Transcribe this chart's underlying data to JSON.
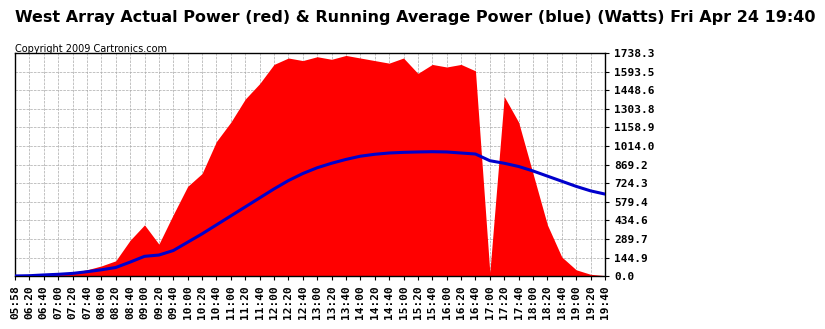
{
  "title": "West Array Actual Power (red) & Running Average Power (blue) (Watts) Fri Apr 24 19:40",
  "copyright": "Copyright 2009 Cartronics.com",
  "bg_color": "#ffffff",
  "plot_bg_color": "#ffffff",
  "grid_color": "#aaaaaa",
  "actual_color": "#ff0000",
  "avg_color": "#0000cc",
  "ymin": 0.0,
  "ymax": 1738.3,
  "yticks": [
    0.0,
    144.9,
    289.7,
    434.6,
    579.4,
    724.3,
    869.2,
    1014.0,
    1158.9,
    1303.8,
    1448.6,
    1593.5,
    1738.3
  ],
  "x_times": [
    "05:58",
    "06:20",
    "06:40",
    "07:00",
    "07:20",
    "07:40",
    "08:00",
    "08:20",
    "08:40",
    "09:00",
    "09:20",
    "09:40",
    "10:00",
    "10:20",
    "10:40",
    "11:00",
    "11:20",
    "11:40",
    "12:00",
    "12:20",
    "12:40",
    "13:00",
    "13:20",
    "13:40",
    "14:00",
    "14:20",
    "14:40",
    "15:00",
    "15:20",
    "15:40",
    "16:00",
    "16:20",
    "16:40",
    "17:00",
    "17:20",
    "17:40",
    "18:00",
    "18:20",
    "18:40",
    "19:00",
    "19:20",
    "19:40"
  ],
  "actual_values": [
    2,
    5,
    15,
    20,
    30,
    50,
    80,
    120,
    280,
    400,
    250,
    480,
    700,
    800,
    1050,
    1200,
    1380,
    1500,
    1650,
    1700,
    1680,
    1710,
    1690,
    1720,
    1700,
    1680,
    1660,
    1700,
    1580,
    1650,
    1630,
    1650,
    1600,
    30,
    1400,
    1200,
    800,
    400,
    150,
    50,
    15,
    5
  ],
  "avg_values": [
    2,
    4,
    10,
    15,
    22,
    35,
    50,
    68,
    110,
    155,
    165,
    200,
    265,
    330,
    400,
    470,
    540,
    610,
    680,
    745,
    800,
    845,
    880,
    910,
    935,
    950,
    960,
    965,
    968,
    970,
    968,
    960,
    952,
    900,
    880,
    855,
    820,
    780,
    740,
    700,
    665,
    640
  ],
  "title_fontsize": 11.5,
  "copyright_fontsize": 7,
  "tick_fontsize": 8,
  "ylabel_fontsize": 8
}
